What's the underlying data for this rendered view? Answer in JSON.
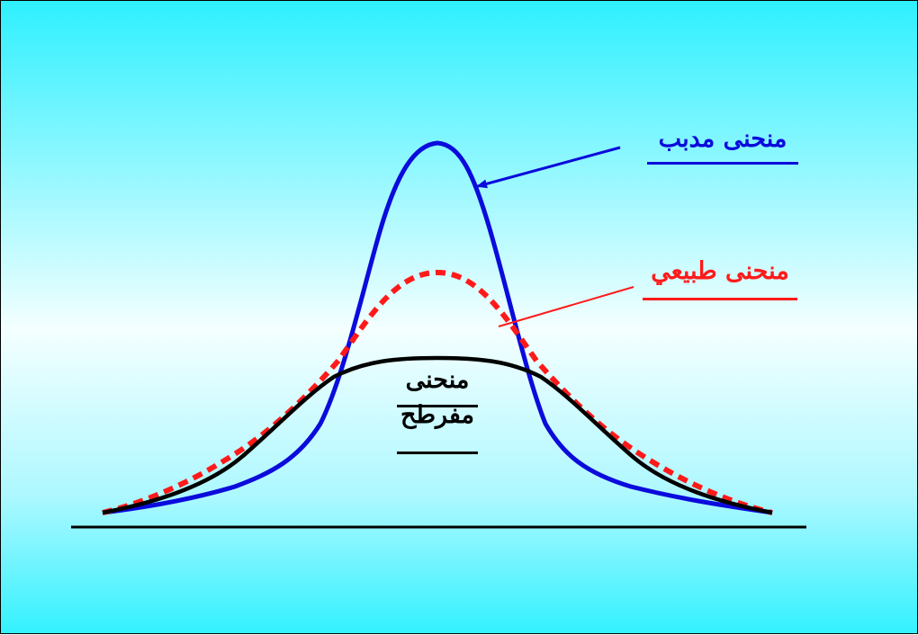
{
  "labels": {
    "leptokurtic": "منحنى مدبب",
    "normal": "منحنى طبيعي",
    "platykurtic_line1": "منحنى",
    "platykurtic_line2": "مفرطح"
  },
  "colors": {
    "background_edge": "#2ef0ff",
    "background_center": "#f4ffff",
    "leptokurtic": "#0b0bdc",
    "normal": "#ff1a1a",
    "platykurtic": "#000000",
    "baseline": "#000000"
  }
}
